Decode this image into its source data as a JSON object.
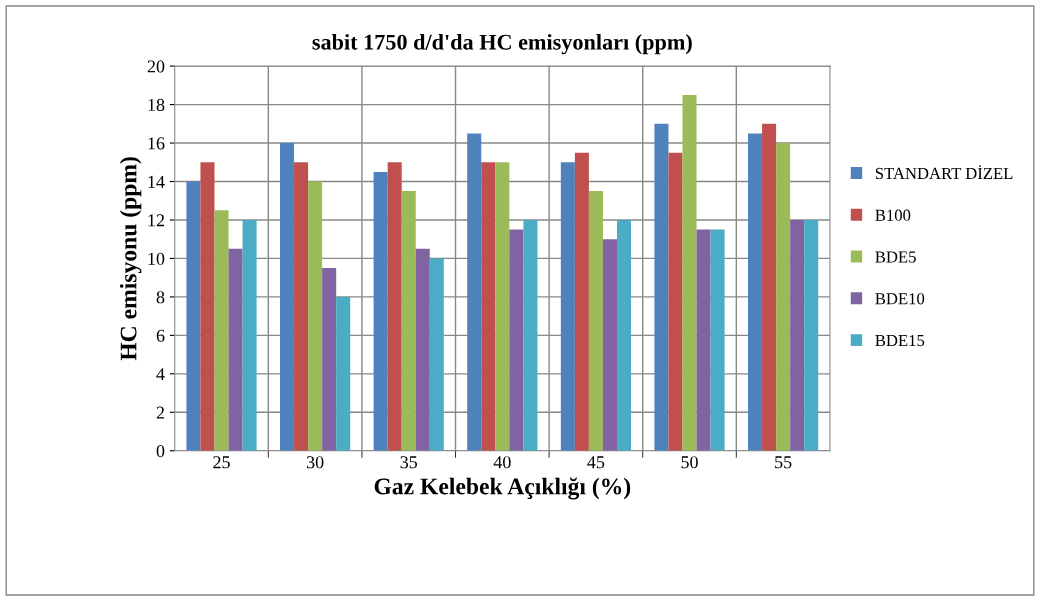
{
  "chart_data": {
    "type": "bar",
    "title": "sabit 1750 d/d'da HC emisyonları (ppm)",
    "xlabel": "Gaz Kelebek Açıklığı (%)",
    "ylabel": "HC emisyonu (ppm)",
    "categories": [
      "25",
      "30",
      "35",
      "40",
      "45",
      "50",
      "55"
    ],
    "series": [
      {
        "name": "STANDART DİZEL",
        "color": "#4f81bd",
        "values": [
          14,
          16,
          14.5,
          16.5,
          15,
          17,
          16.5
        ]
      },
      {
        "name": "B100",
        "color": "#c0504d",
        "values": [
          15,
          15,
          15,
          15,
          15.5,
          15.5,
          17
        ]
      },
      {
        "name": "BDE5",
        "color": "#9bbb59",
        "values": [
          12.5,
          14,
          13.5,
          15,
          13.5,
          18.5,
          16
        ]
      },
      {
        "name": "BDE10",
        "color": "#8064a2",
        "values": [
          10.5,
          9.5,
          10.5,
          11.5,
          11,
          11.5,
          12
        ]
      },
      {
        "name": "BDE15",
        "color": "#4bacc6",
        "values": [
          12,
          8,
          10,
          12,
          12,
          11.5,
          12
        ]
      }
    ],
    "ylim": [
      0,
      20
    ],
    "yticks": [
      0,
      2,
      4,
      6,
      8,
      10,
      12,
      14,
      16,
      18,
      20
    ],
    "grid": true,
    "legend": "right"
  }
}
